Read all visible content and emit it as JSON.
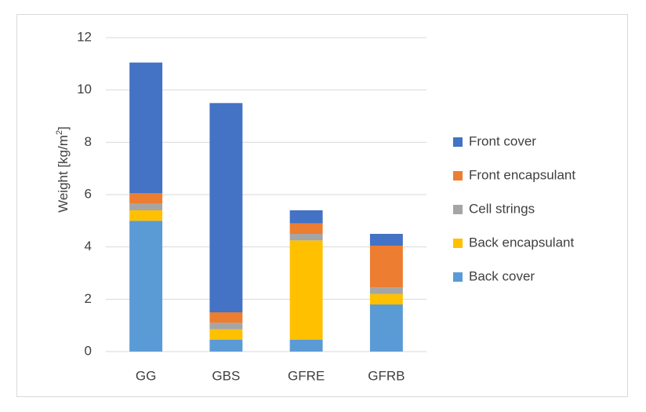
{
  "chart_data": {
    "type": "bar",
    "stacked": true,
    "categories": [
      "GG",
      "GBS",
      "GFRE",
      "GFRB"
    ],
    "title": "",
    "xlabel": "",
    "ylabel": "Weight [kg/m²]",
    "ylabel_parts": {
      "main": "Weight [kg/m",
      "sup": "2",
      "end": "]"
    },
    "ylim": [
      0,
      12
    ],
    "yticks": [
      0,
      2,
      4,
      6,
      8,
      10,
      12
    ],
    "grid": true,
    "legend_position": "right",
    "series": [
      {
        "name": "Back cover",
        "color": "#5b9bd5",
        "values": [
          5.0,
          0.45,
          0.45,
          1.8
        ]
      },
      {
        "name": "Back encapsulant",
        "color": "#ffc000",
        "values": [
          0.4,
          0.4,
          3.8,
          0.4
        ]
      },
      {
        "name": "Cell strings",
        "color": "#a5a5a5",
        "values": [
          0.25,
          0.25,
          0.25,
          0.25
        ]
      },
      {
        "name": "Front encapsulant",
        "color": "#ed7d31",
        "values": [
          0.4,
          0.4,
          0.4,
          1.6
        ]
      },
      {
        "name": "Front cover",
        "color": "#4472c4",
        "values": [
          5.0,
          8.0,
          0.5,
          0.45
        ]
      }
    ]
  }
}
